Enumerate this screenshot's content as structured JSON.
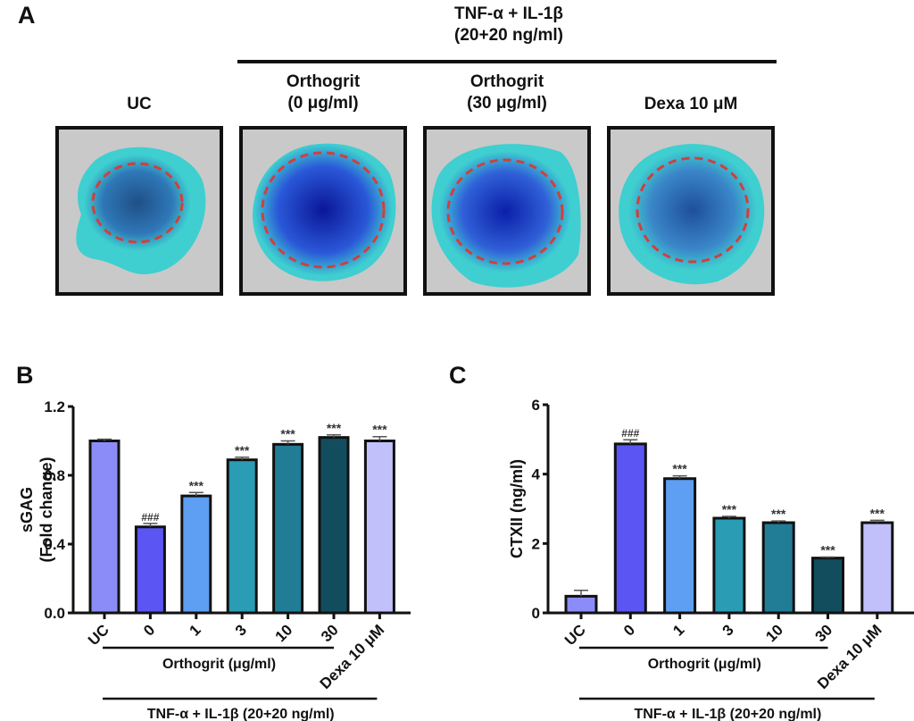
{
  "panel_a": {
    "letter": "A",
    "treatment_header_line1": "TNF-α + IL-1β",
    "treatment_header_line2": "(20+20 ng/ml)",
    "columns": [
      {
        "label_line1": "UC",
        "label_line2": "",
        "stain": "uc"
      },
      {
        "label_line1": "Orthogrit",
        "label_line2": "(0 μg/ml)",
        "stain": "dark"
      },
      {
        "label_line1": "Orthogrit",
        "label_line2": "(30 μg/ml)",
        "stain": "dark2"
      },
      {
        "label_line1": "Dexa 10 μM",
        "label_line2": "",
        "stain": "medium"
      }
    ],
    "colors": {
      "background": "#c9c9c9",
      "halo": "#3fcfd0",
      "core_dark": "#0a1fa0",
      "core_medium": "#2d5ea8",
      "dashed_circle": "#d0403a"
    }
  },
  "chart_data": [
    {
      "panel": "B",
      "type": "bar",
      "title": "",
      "ylabel": "sGAG (Fold change)",
      "ylabel_line1": "sGAG",
      "ylabel_line2": "(Fold change)",
      "xlabel": "",
      "ylim": [
        0,
        1.2
      ],
      "yticks": [
        0.0,
        0.4,
        0.8,
        1.2
      ],
      "ytick_labels": [
        "0.0",
        "0.4",
        "0.8",
        "1.2"
      ],
      "categories": [
        "UC",
        "0",
        "1",
        "3",
        "10",
        "30",
        "Dexa 10 μM"
      ],
      "values": [
        1.0,
        0.5,
        0.68,
        0.89,
        0.98,
        1.02,
        1.0
      ],
      "errors": [
        0.01,
        0.02,
        0.02,
        0.015,
        0.02,
        0.015,
        0.025
      ],
      "annotations": [
        "",
        "###",
        "***",
        "***",
        "***",
        "***",
        "***"
      ],
      "bar_colors": [
        "#8c8cf9",
        "#5a55f3",
        "#5e9ff3",
        "#2a9cb3",
        "#217c96",
        "#124d5e",
        "#c1c0fb"
      ],
      "group_label_1": "Orthogrit (μg/ml)",
      "group_label_2": "TNF-α + IL-1β (20+20 ng/ml)",
      "grid": false,
      "legend": "none"
    },
    {
      "panel": "C",
      "type": "bar",
      "title": "",
      "ylabel": "CTXII (ng/ml)",
      "xlabel": "",
      "ylim": [
        0,
        6
      ],
      "yticks": [
        0,
        2,
        4,
        6
      ],
      "ytick_labels": [
        "0",
        "2",
        "4",
        "6"
      ],
      "categories": [
        "UC",
        "0",
        "1",
        "3",
        "10",
        "30",
        "Dexa 10 μM"
      ],
      "values": [
        0.48,
        4.87,
        3.87,
        2.73,
        2.6,
        1.58,
        2.6
      ],
      "errors": [
        0.17,
        0.12,
        0.08,
        0.05,
        0.05,
        0.03,
        0.07
      ],
      "annotations": [
        "",
        "###",
        "***",
        "***",
        "***",
        "***",
        "***"
      ],
      "bar_colors": [
        "#8c8cf9",
        "#5a55f3",
        "#5e9ff3",
        "#2a9cb3",
        "#217c96",
        "#124d5e",
        "#c1c0fb"
      ],
      "group_label_1": "Orthogrit (μg/ml)",
      "group_label_2": "TNF-α + IL-1β (20+20 ng/ml)",
      "grid": false,
      "legend": "none"
    }
  ]
}
